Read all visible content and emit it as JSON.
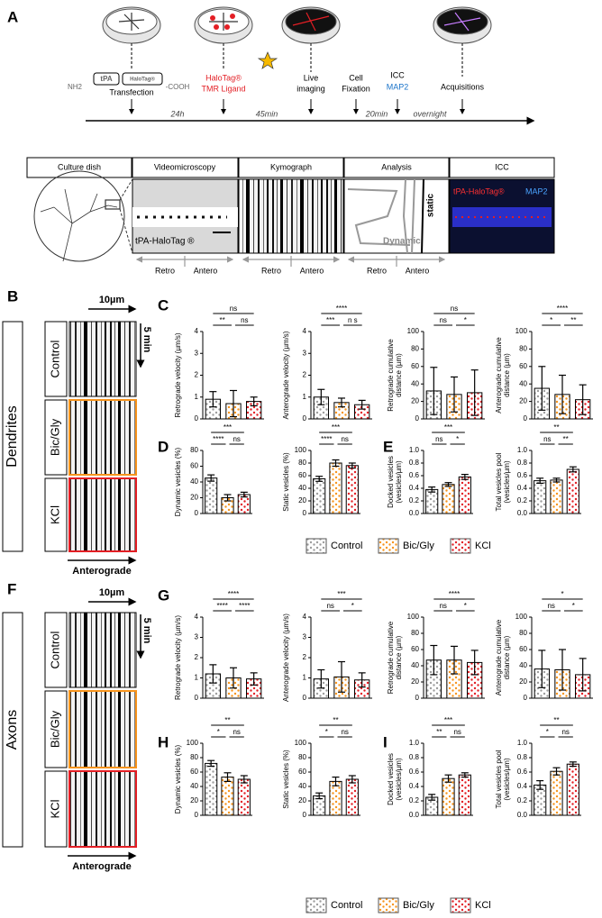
{
  "panel_a": {
    "label": "A",
    "construct": {
      "nh2": "NH2",
      "tpa": "tPA",
      "halotag": "HaloTag®",
      "cooh": "-COOH"
    },
    "transfection": "Transfection",
    "ligand": [
      "HaloTag®",
      "TMR Ligand"
    ],
    "live_imaging": [
      "Live",
      "imaging"
    ],
    "fixation": [
      "Cell",
      "Fixation"
    ],
    "icc": "ICC",
    "map2": "MAP2",
    "acquisitions": "Acquisitions",
    "intervals": [
      "24h",
      "45min",
      "20min",
      "overnight"
    ],
    "pipeline": [
      "Culture dish",
      "Videomicroscopy",
      "Kymograph",
      "Analysis",
      "ICC"
    ],
    "video_label": "tPA-HaloTag ®",
    "analysis_static": "static",
    "analysis_dynamic": "Dynamic",
    "icc_tpa": "tPA-HaloTag®",
    "icc_map2": "MAP2",
    "retro": "Retro",
    "antero": "Antero"
  },
  "panel_b": {
    "label": "B",
    "compartment": "Dendrites",
    "scale_x": "10µm",
    "scale_t": "5 min",
    "conditions": [
      "Control",
      "Bic/Gly",
      "KCl"
    ],
    "direction": "Anterograde"
  },
  "panel_f": {
    "label": "F",
    "compartment": "Axons",
    "scale_x": "10µm",
    "scale_t": "5 min",
    "conditions": [
      "Control",
      "Bic/Gly",
      "KCl"
    ],
    "direction": "Anterograde"
  },
  "legend": [
    {
      "name": "Control",
      "color": "#9d9d9d"
    },
    {
      "name": "Bic/Gly",
      "color": "#f7941d"
    },
    {
      "name": "KCl",
      "color": "#e31e24"
    }
  ],
  "panels": [
    {
      "label": "C",
      "charts": [
        {
          "type": "bar",
          "ylabel": [
            "Retrograde velocity (µm/s)"
          ],
          "ylim": [
            0,
            4
          ],
          "yticks": [
            0,
            1,
            2,
            3,
            4
          ],
          "values": [
            0.9,
            0.7,
            0.8
          ],
          "errors": [
            0.35,
            0.6,
            0.2
          ],
          "significance": [
            "ns",
            "**",
            "ns"
          ]
        },
        {
          "type": "bar",
          "ylabel": [
            "Anterograde velocity (µm/s)"
          ],
          "ylim": [
            0,
            4
          ],
          "yticks": [
            0,
            1,
            2,
            3,
            4
          ],
          "values": [
            1.0,
            0.75,
            0.65
          ],
          "errors": [
            0.35,
            0.2,
            0.2
          ],
          "significance": [
            "****",
            "***",
            "n s"
          ]
        },
        {
          "type": "bar",
          "ylabel": [
            "Retrograde cumulative",
            "distance (µm)"
          ],
          "ylim": [
            0,
            100
          ],
          "yticks": [
            0,
            20,
            40,
            60,
            80,
            100
          ],
          "values": [
            32,
            28,
            30
          ],
          "errors": [
            27,
            20,
            26
          ],
          "significance": [
            "ns",
            "ns",
            "*"
          ]
        },
        {
          "type": "bar",
          "ylabel": [
            "Anterograde cumulative",
            "distance (µm)"
          ],
          "ylim": [
            0,
            100
          ],
          "yticks": [
            0,
            20,
            40,
            60,
            80,
            100
          ],
          "values": [
            35,
            28,
            22
          ],
          "errors": [
            25,
            22,
            17
          ],
          "significance": [
            "****",
            "*",
            "**"
          ]
        }
      ]
    },
    {
      "label": "D",
      "charts": [
        {
          "type": "bar",
          "ylabel": [
            "Dynamic vesicles (%)"
          ],
          "ylim": [
            0,
            80
          ],
          "yticks": [
            0,
            20,
            40,
            60,
            80
          ],
          "values": [
            45,
            20,
            24
          ],
          "errors": [
            4,
            4,
            3
          ],
          "significance": [
            "***",
            "****",
            "ns"
          ]
        },
        {
          "type": "bar",
          "ylabel": [
            "Static vesicles (%)"
          ],
          "ylim": [
            0,
            100
          ],
          "yticks": [
            0,
            20,
            40,
            60,
            80,
            100
          ],
          "values": [
            55,
            80,
            76
          ],
          "errors": [
            4,
            5,
            4
          ],
          "significance": [
            "***",
            "****",
            "ns"
          ]
        }
      ]
    },
    {
      "label": "E",
      "charts": [
        {
          "type": "bar",
          "ylabel": [
            "Docked vesicles",
            "(vesicles/µm)"
          ],
          "ylim": [
            0,
            1
          ],
          "yticks": [
            {
              "value": 0,
              "label": "0.0"
            },
            0.2,
            0.4,
            0.6,
            0.8,
            {
              "value": 1,
              "label": "1.0"
            }
          ],
          "values": [
            0.38,
            0.46,
            0.58
          ],
          "errors": [
            0.04,
            0.03,
            0.04
          ],
          "significance": [
            "***",
            "ns",
            "*"
          ]
        },
        {
          "type": "bar",
          "ylabel": [
            "Total vesicles pool",
            "(vesicles/µm)"
          ],
          "ylim": [
            0,
            1
          ],
          "yticks": [
            {
              "value": 0,
              "label": "0.0"
            },
            0.2,
            0.4,
            0.6,
            0.8,
            {
              "value": 1,
              "label": "1.0"
            }
          ],
          "values": [
            0.52,
            0.53,
            0.7
          ],
          "errors": [
            0.04,
            0.03,
            0.04
          ],
          "significance": [
            "**",
            "ns",
            "**"
          ]
        }
      ]
    },
    {
      "label": "G",
      "charts": [
        {
          "type": "bar",
          "ylabel": [
            "Retrograde velocity (µm/s)"
          ],
          "ylim": [
            0,
            4
          ],
          "yticks": [
            0,
            1,
            2,
            3,
            4
          ],
          "values": [
            1.2,
            1.0,
            0.95
          ],
          "errors": [
            0.45,
            0.5,
            0.3
          ],
          "significance": [
            "****",
            "****",
            "****"
          ]
        },
        {
          "type": "bar",
          "ylabel": [
            "Anterograde velocity (µm/s)"
          ],
          "ylim": [
            0,
            4
          ],
          "yticks": [
            0,
            1,
            2,
            3,
            4
          ],
          "values": [
            0.95,
            1.05,
            0.9
          ],
          "errors": [
            0.45,
            0.75,
            0.35
          ],
          "significance": [
            "***",
            "ns",
            "*"
          ]
        },
        {
          "type": "bar",
          "ylabel": [
            "Retrograde cumulative",
            "distance (µm)"
          ],
          "ylim": [
            0,
            100
          ],
          "yticks": [
            0,
            20,
            40,
            60,
            80,
            100
          ],
          "values": [
            47,
            47,
            44
          ],
          "errors": [
            18,
            17,
            15
          ],
          "significance": [
            "****",
            "ns",
            "*"
          ]
        },
        {
          "type": "bar",
          "ylabel": [
            "Anterograde cumulative",
            "distance (µm)"
          ],
          "ylim": [
            0,
            100
          ],
          "yticks": [
            0,
            20,
            40,
            60,
            80,
            100
          ],
          "values": [
            36,
            35,
            29
          ],
          "errors": [
            23,
            25,
            20
          ],
          "significance": [
            "*",
            "ns",
            "*"
          ]
        }
      ]
    },
    {
      "label": "H",
      "charts": [
        {
          "type": "bar",
          "ylabel": [
            "Dynamic vesicles (%)"
          ],
          "ylim": [
            0,
            100
          ],
          "yticks": [
            0,
            20,
            40,
            60,
            80,
            100
          ],
          "values": [
            72,
            53,
            50
          ],
          "errors": [
            4,
            6,
            5
          ],
          "significance": [
            "**",
            "*",
            "ns"
          ]
        },
        {
          "type": "bar",
          "ylabel": [
            "Static vesicles (%)"
          ],
          "ylim": [
            0,
            100
          ],
          "yticks": [
            0,
            20,
            40,
            60,
            80,
            100
          ],
          "values": [
            27,
            47,
            50
          ],
          "errors": [
            4,
            6,
            5
          ],
          "significance": [
            "**",
            "*",
            "ns"
          ]
        }
      ]
    },
    {
      "label": "I",
      "charts": [
        {
          "type": "bar",
          "ylabel": [
            "Docked vesicles",
            "(vesicles/µm)"
          ],
          "ylim": [
            0,
            1
          ],
          "yticks": [
            {
              "value": 0,
              "label": "0.0"
            },
            0.2,
            0.4,
            0.6,
            0.8,
            {
              "value": 1,
              "label": "1.0"
            }
          ],
          "values": [
            0.25,
            0.51,
            0.56
          ],
          "errors": [
            0.04,
            0.05,
            0.03
          ],
          "significance": [
            "***",
            "**",
            "ns"
          ]
        },
        {
          "type": "bar",
          "ylabel": [
            "Total vesicles pool",
            "(vesicles/µm)"
          ],
          "ylim": [
            0,
            1
          ],
          "yticks": [
            {
              "value": 0,
              "label": "0.0"
            },
            0.2,
            0.4,
            0.6,
            0.8,
            {
              "value": 1,
              "label": "1.0"
            }
          ],
          "values": [
            0.42,
            0.61,
            0.71
          ],
          "errors": [
            0.06,
            0.05,
            0.03
          ],
          "significance": [
            "**",
            "*",
            "ns"
          ]
        }
      ]
    }
  ]
}
